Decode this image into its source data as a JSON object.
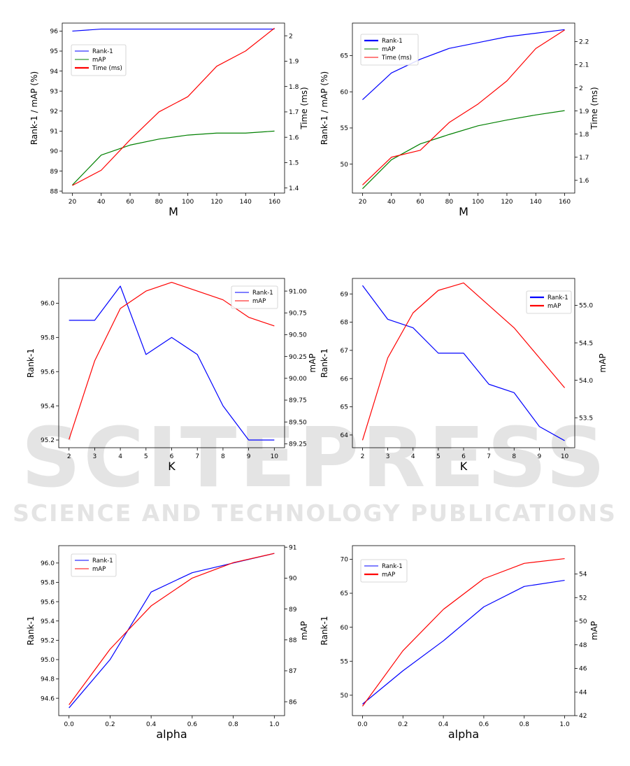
{
  "watermark": {
    "brand": "SCITEPRESS",
    "tagline": "SCIENCE AND TECHNOLOGY PUBLICATIONS"
  },
  "chart_data": [
    {
      "type": "line",
      "xlabel": "M",
      "ylabel": "Rank-1 / mAP (%)",
      "y2label": "Time (ms)",
      "xlim": [
        13,
        167
      ],
      "ylim": [
        87.9,
        96.4
      ],
      "y2lim": [
        1.38,
        2.05
      ],
      "xticks": [
        20,
        40,
        60,
        80,
        100,
        120,
        140,
        160
      ],
      "yticks": [
        88,
        89,
        90,
        91,
        92,
        93,
        94,
        95,
        96
      ],
      "y2ticks": [
        1.4,
        1.5,
        1.6,
        1.7,
        1.8,
        1.9,
        2.0
      ],
      "legend_position": "upper-left",
      "x": [
        20,
        40,
        60,
        80,
        100,
        120,
        140,
        160
      ],
      "series": [
        {
          "name": "Rank-1",
          "axis": "left",
          "color": "#0000ff",
          "values": [
            96.0,
            96.1,
            96.1,
            96.1,
            96.1,
            96.1,
            96.1,
            96.1
          ]
        },
        {
          "name": "mAP",
          "axis": "left",
          "color": "#008000",
          "values": [
            88.3,
            89.8,
            90.3,
            90.6,
            90.8,
            90.9,
            90.9,
            91.0
          ]
        },
        {
          "name": "Time (ms)",
          "axis": "right",
          "color": "#ff0000",
          "values": [
            1.41,
            1.47,
            1.59,
            1.7,
            1.76,
            1.88,
            1.94,
            2.03
          ]
        }
      ]
    },
    {
      "type": "line",
      "xlabel": "M",
      "ylabel": "Rank-1 / mAP (%)",
      "y2label": "Time (ms)",
      "xlim": [
        13,
        167
      ],
      "ylim": [
        46.0,
        69.5
      ],
      "y2lim": [
        1.545,
        2.28
      ],
      "xticks": [
        20,
        40,
        60,
        80,
        100,
        120,
        140,
        160
      ],
      "yticks": [
        50,
        55,
        60,
        65
      ],
      "y2ticks": [
        1.6,
        1.7,
        1.8,
        1.9,
        2.0,
        2.1,
        2.2
      ],
      "legend_position": "upper-left",
      "x": [
        20,
        40,
        60,
        80,
        100,
        120,
        140,
        160
      ],
      "series": [
        {
          "name": "Rank-1",
          "axis": "left",
          "color": "#0000ff",
          "values": [
            58.9,
            62.6,
            64.5,
            66.0,
            66.8,
            67.6,
            68.1,
            68.6
          ]
        },
        {
          "name": "mAP",
          "axis": "left",
          "color": "#008000",
          "values": [
            46.6,
            50.6,
            52.8,
            54.1,
            55.3,
            56.1,
            56.8,
            57.4
          ]
        },
        {
          "name": "Time (ms)",
          "axis": "right",
          "color": "#ff0000",
          "values": [
            1.58,
            1.7,
            1.73,
            1.85,
            1.93,
            2.03,
            2.17,
            2.25
          ]
        }
      ]
    },
    {
      "type": "line",
      "xlabel": "K",
      "ylabel": "Rank-1",
      "y2label": "mAP",
      "xlim": [
        1.6,
        10.4
      ],
      "ylim": [
        95.155,
        96.145
      ],
      "y2lim": [
        89.205,
        91.145
      ],
      "xticks": [
        2,
        3,
        4,
        5,
        6,
        7,
        8,
        9,
        10
      ],
      "yticks": [
        95.2,
        95.4,
        95.6,
        95.8,
        96.0
      ],
      "y2ticks": [
        89.25,
        89.5,
        89.75,
        90.0,
        90.25,
        90.5,
        90.75,
        91.0
      ],
      "yticks_text": [
        "95.2",
        "95.4",
        "95.6",
        "95.8",
        "96.0"
      ],
      "y2ticks_text": [
        "89.25",
        "89.50",
        "89.75",
        "90.00",
        "90.25",
        "90.50",
        "90.75",
        "91.00"
      ],
      "legend_position": "upper-right",
      "x": [
        2,
        3,
        4,
        5,
        6,
        7,
        8,
        9,
        10
      ],
      "series": [
        {
          "name": "Rank-1",
          "axis": "left",
          "color": "#0000ff",
          "values": [
            95.9,
            95.9,
            96.1,
            95.7,
            95.8,
            95.7,
            95.4,
            95.2,
            95.2
          ]
        },
        {
          "name": "mAP",
          "axis": "right",
          "color": "#ff0000",
          "values": [
            89.3,
            90.2,
            90.8,
            91.0,
            91.1,
            91.0,
            90.9,
            90.7,
            90.6
          ]
        }
      ]
    },
    {
      "type": "line",
      "xlabel": "K",
      "ylabel": "Rank-1",
      "y2label": "mAP",
      "xlim": [
        1.6,
        10.4
      ],
      "ylim": [
        63.55,
        69.55
      ],
      "y2lim": [
        53.1,
        55.36
      ],
      "xticks": [
        2,
        3,
        4,
        5,
        6,
        7,
        8,
        9,
        10
      ],
      "yticks": [
        64,
        65,
        66,
        67,
        68,
        69
      ],
      "y2ticks": [
        53.5,
        54.0,
        54.5,
        55.0
      ],
      "y2ticks_text": [
        "53.5",
        "54.0",
        "54.5",
        "55.0"
      ],
      "legend_position": "upper-right",
      "x": [
        2,
        3,
        4,
        5,
        6,
        7,
        8,
        9,
        10
      ],
      "series": [
        {
          "name": "Rank-1",
          "axis": "left",
          "color": "#0000ff",
          "values": [
            69.3,
            68.1,
            67.8,
            66.9,
            66.9,
            65.8,
            65.5,
            64.3,
            63.8
          ]
        },
        {
          "name": "mAP",
          "axis": "right",
          "color": "#ff0000",
          "values": [
            53.2,
            54.3,
            54.9,
            55.2,
            55.3,
            55.0,
            54.7,
            54.3,
            53.9
          ]
        }
      ]
    },
    {
      "type": "line",
      "xlabel": "alpha",
      "ylabel": "Rank-1",
      "y2label": "mAP",
      "xlim": [
        -0.05,
        1.05
      ],
      "ylim": [
        94.42,
        96.18
      ],
      "y2lim": [
        85.55,
        91.05
      ],
      "xticks": [
        0.0,
        0.2,
        0.4,
        0.6,
        0.8,
        1.0
      ],
      "xticks_text": [
        "0.0",
        "0.2",
        "0.4",
        "0.6",
        "0.8",
        "1.0"
      ],
      "yticks": [
        94.6,
        94.8,
        95.0,
        95.2,
        95.4,
        95.6,
        95.8,
        96.0
      ],
      "yticks_text": [
        "94.6",
        "94.8",
        "95.0",
        "95.2",
        "95.4",
        "95.6",
        "95.8",
        "96.0"
      ],
      "y2ticks": [
        86,
        87,
        88,
        89,
        90,
        91
      ],
      "legend_position": "upper-left",
      "x": [
        0.0,
        0.2,
        0.4,
        0.6,
        0.8,
        1.0
      ],
      "series": [
        {
          "name": "Rank-1",
          "axis": "left",
          "color": "#0000ff",
          "values": [
            94.5,
            95.0,
            95.7,
            95.9,
            96.0,
            96.1
          ]
        },
        {
          "name": "mAP",
          "axis": "right",
          "color": "#ff0000",
          "values": [
            85.9,
            87.7,
            89.1,
            90.0,
            90.5,
            90.8
          ]
        }
      ]
    },
    {
      "type": "line",
      "xlabel": "alpha",
      "ylabel": "Rank-1",
      "y2label": "mAP",
      "xlim": [
        -0.05,
        1.05
      ],
      "ylim": [
        47.0,
        72.0
      ],
      "y2lim": [
        42.0,
        56.4
      ],
      "xticks": [
        0.0,
        0.2,
        0.4,
        0.6,
        0.8,
        1.0
      ],
      "xticks_text": [
        "0.0",
        "0.2",
        "0.4",
        "0.6",
        "0.8",
        "1.0"
      ],
      "yticks": [
        50,
        55,
        60,
        65,
        70
      ],
      "y2ticks": [
        42,
        44,
        46,
        48,
        50,
        52,
        54
      ],
      "legend_position": "upper-left",
      "x": [
        0.0,
        0.2,
        0.4,
        0.6,
        0.8,
        1.0
      ],
      "series": [
        {
          "name": "Rank-1",
          "axis": "left",
          "color": "#0000ff",
          "values": [
            48.7,
            53.6,
            58.0,
            63.0,
            66.0,
            66.9
          ]
        },
        {
          "name": "mAP",
          "axis": "right",
          "color": "#ff0000",
          "values": [
            42.8,
            47.5,
            51.0,
            53.6,
            54.9,
            55.3
          ]
        }
      ]
    }
  ]
}
